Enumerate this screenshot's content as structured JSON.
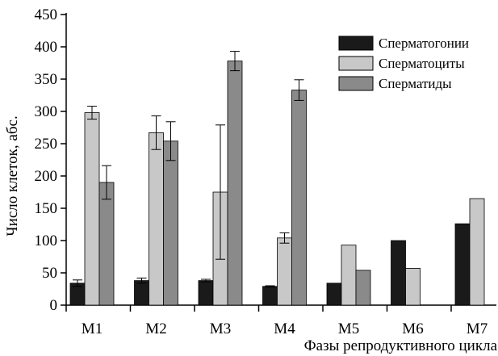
{
  "chart_data": {
    "type": "bar",
    "categories": [
      "M1",
      "M2",
      "M3",
      "M4",
      "M5",
      "M6",
      "M7"
    ],
    "series": [
      {
        "name": "Сперматогонии",
        "color": "#1a1a1a",
        "values": [
          34,
          38,
          38,
          29,
          34,
          100,
          126
        ],
        "errors": [
          5,
          4,
          2,
          1,
          null,
          null,
          null
        ]
      },
      {
        "name": "Сперматоциты",
        "color": "#c8c8c8",
        "values": [
          298,
          267,
          175,
          104,
          93,
          57,
          165
        ],
        "errors": [
          10,
          26,
          104,
          8,
          null,
          null,
          null
        ]
      },
      {
        "name": "Сперматиды",
        "color": "#8a8a8a",
        "values": [
          190,
          254,
          378,
          333,
          54,
          null,
          null
        ],
        "errors": [
          26,
          30,
          15,
          16,
          null,
          null,
          null
        ]
      }
    ],
    "ylim": [
      0,
      450
    ],
    "yticks": [
      0,
      50,
      100,
      150,
      200,
      250,
      300,
      350,
      400,
      450
    ],
    "xlabel": "Фазы репродуктивного цикла",
    "ylabel": "Число клеток, абс.",
    "legend_position": "top-right",
    "grid": false
  }
}
